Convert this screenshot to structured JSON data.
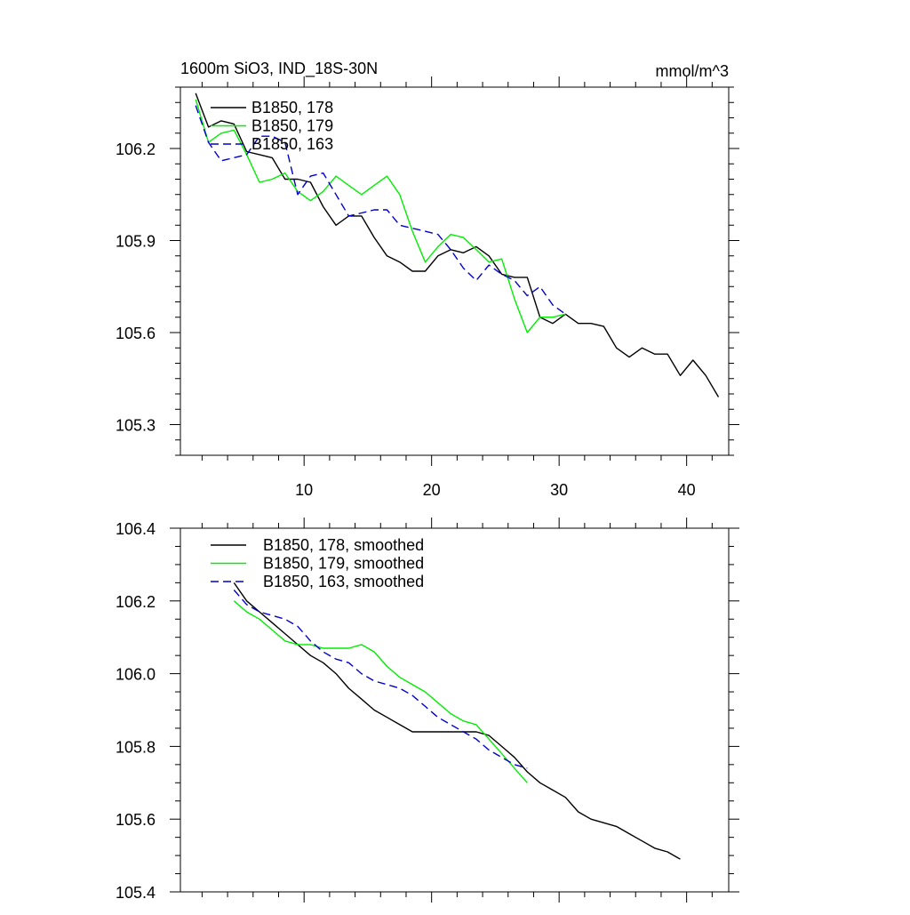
{
  "header": {
    "title": "1600m SiO3, IND_18S-30N",
    "units": "mmol/m^3"
  },
  "colors": {
    "run178": "#000000",
    "run179": "#00ee00",
    "run163": "#0000cc"
  },
  "chart_data": [
    {
      "type": "line",
      "title": "1600m SiO3, IND_18S-30N",
      "xlabel": "",
      "ylabel": "",
      "xlim": [
        0.3,
        43.3
      ],
      "ylim": [
        105.2,
        106.4
      ],
      "xticks": [
        10,
        20,
        30,
        40
      ],
      "xtick_labels": [
        "10",
        "20",
        "30",
        "40"
      ],
      "yticks": [
        105.3,
        105.6,
        105.9,
        106.2
      ],
      "ytick_labels": [
        "105.3",
        "105.6",
        "105.9",
        "106.2"
      ],
      "legend_position": "top-left",
      "series": [
        {
          "name": "B1850, 178",
          "color": "#000000",
          "dash": "solid",
          "x": [
            1.5,
            2.5,
            3.5,
            4.5,
            5.5,
            6.5,
            7.5,
            8.5,
            9.5,
            10.5,
            11.5,
            12.5,
            13.5,
            14.5,
            15.5,
            16.5,
            17.5,
            18.5,
            19.5,
            20.5,
            21.5,
            22.5,
            23.5,
            24.5,
            25.5,
            26.5,
            27.5,
            28.5,
            29.5,
            30.5,
            31.5,
            32.5,
            33.5,
            34.5,
            35.5,
            36.5,
            37.5,
            38.5,
            39.5,
            40.5,
            41.5,
            42.5
          ],
          "y": [
            106.38,
            106.27,
            106.29,
            106.28,
            106.19,
            106.18,
            106.17,
            106.1,
            106.1,
            106.09,
            106.01,
            105.95,
            105.98,
            105.98,
            105.91,
            105.85,
            105.83,
            105.8,
            105.8,
            105.85,
            105.87,
            105.86,
            105.88,
            105.85,
            105.79,
            105.78,
            105.78,
            105.65,
            105.63,
            105.66,
            105.63,
            105.63,
            105.62,
            105.55,
            105.52,
            105.55,
            105.53,
            105.53,
            105.46,
            105.51,
            105.46,
            105.39
          ]
        },
        {
          "name": "B1850, 179",
          "color": "#00ee00",
          "dash": "solid",
          "x": [
            1.5,
            2.5,
            3.5,
            4.5,
            5.5,
            6.5,
            7.5,
            8.5,
            9.5,
            10.5,
            11.5,
            12.5,
            13.5,
            14.5,
            15.5,
            16.5,
            17.5,
            18.5,
            19.5,
            20.5,
            21.5,
            22.5,
            23.5,
            24.5,
            25.5,
            26.5,
            27.5,
            28.5,
            29.5,
            30.5
          ],
          "y": [
            106.36,
            106.22,
            106.25,
            106.26,
            106.18,
            106.09,
            106.1,
            106.12,
            106.06,
            106.03,
            106.06,
            106.11,
            106.08,
            106.05,
            106.08,
            106.11,
            106.05,
            105.93,
            105.83,
            105.88,
            105.92,
            105.91,
            105.87,
            105.83,
            105.84,
            105.71,
            105.6,
            105.65,
            105.65,
            105.66
          ]
        },
        {
          "name": "B1850, 163",
          "color": "#0000cc",
          "dash": "dashed",
          "x": [
            1.5,
            2.5,
            3.5,
            4.5,
            5.5,
            6.5,
            7.5,
            8.5,
            9.5,
            10.5,
            11.5,
            12.5,
            13.5,
            14.5,
            15.5,
            16.5,
            17.5,
            18.5,
            19.5,
            20.5,
            21.5,
            22.5,
            23.5,
            24.5,
            25.5,
            26.5,
            27.5,
            28.5,
            29.5,
            30.5
          ],
          "y": [
            106.34,
            106.22,
            106.16,
            106.17,
            106.18,
            106.24,
            106.24,
            106.22,
            106.05,
            106.11,
            106.12,
            106.05,
            105.98,
            105.99,
            106.0,
            106.0,
            105.95,
            105.94,
            105.93,
            105.92,
            105.87,
            105.81,
            105.77,
            105.82,
            105.79,
            105.77,
            105.72,
            105.75,
            105.69,
            105.66
          ]
        }
      ]
    },
    {
      "type": "line",
      "title": "",
      "xlabel": "",
      "ylabel": "",
      "xlim": [
        0.3,
        43.3
      ],
      "ylim": [
        105.4,
        106.4
      ],
      "xticks": [
        10,
        20,
        30,
        40
      ],
      "yticks": [
        105.4,
        105.6,
        105.8,
        106.0,
        106.2,
        106.4
      ],
      "ytick_labels": [
        "105.4",
        "105.6",
        "105.8",
        "106.0",
        "106.2",
        "106.4"
      ],
      "legend_position": "top-left",
      "series": [
        {
          "name": "B1850, 178, smoothed",
          "color": "#000000",
          "dash": "solid",
          "x": [
            4.5,
            5.5,
            6.5,
            7.5,
            8.5,
            9.5,
            10.5,
            11.5,
            12.5,
            13.5,
            14.5,
            15.5,
            16.5,
            17.5,
            18.5,
            19.5,
            20.5,
            21.5,
            22.5,
            23.5,
            24.5,
            25.5,
            26.5,
            27.5,
            28.5,
            29.5,
            30.5,
            31.5,
            32.5,
            33.5,
            34.5,
            35.5,
            36.5,
            37.5,
            38.5,
            39.5
          ],
          "y": [
            106.25,
            106.2,
            106.17,
            106.14,
            106.11,
            106.08,
            106.05,
            106.03,
            106.0,
            105.96,
            105.93,
            105.9,
            105.88,
            105.86,
            105.84,
            105.84,
            105.84,
            105.84,
            105.84,
            105.84,
            105.83,
            105.8,
            105.77,
            105.73,
            105.7,
            105.68,
            105.66,
            105.62,
            105.6,
            105.59,
            105.58,
            105.56,
            105.54,
            105.52,
            105.51,
            105.49
          ]
        },
        {
          "name": "B1850, 179, smoothed",
          "color": "#00ee00",
          "dash": "solid",
          "x": [
            4.5,
            5.5,
            6.5,
            7.5,
            8.5,
            9.5,
            10.5,
            11.5,
            12.5,
            13.5,
            14.5,
            15.5,
            16.5,
            17.5,
            18.5,
            19.5,
            20.5,
            21.5,
            22.5,
            23.5,
            24.5,
            25.5,
            26.5,
            27.5
          ],
          "y": [
            106.2,
            106.17,
            106.15,
            106.12,
            106.09,
            106.08,
            106.08,
            106.07,
            106.07,
            106.07,
            106.08,
            106.06,
            106.02,
            105.99,
            105.97,
            105.95,
            105.92,
            105.89,
            105.87,
            105.86,
            105.82,
            105.78,
            105.74,
            105.7
          ]
        },
        {
          "name": "B1850, 163, smoothed",
          "color": "#0000cc",
          "dash": "dashed",
          "x": [
            4.5,
            5.5,
            6.5,
            7.5,
            8.5,
            9.5,
            10.5,
            11.5,
            12.5,
            13.5,
            14.5,
            15.5,
            16.5,
            17.5,
            18.5,
            19.5,
            20.5,
            21.5,
            22.5,
            23.5,
            24.5,
            25.5,
            26.5,
            27.5
          ],
          "y": [
            106.23,
            106.19,
            106.17,
            106.16,
            106.15,
            106.13,
            106.09,
            106.06,
            106.04,
            106.03,
            106.0,
            105.98,
            105.97,
            105.96,
            105.94,
            105.91,
            105.88,
            105.86,
            105.84,
            105.82,
            105.79,
            105.77,
            105.75,
            105.74
          ]
        }
      ]
    }
  ]
}
